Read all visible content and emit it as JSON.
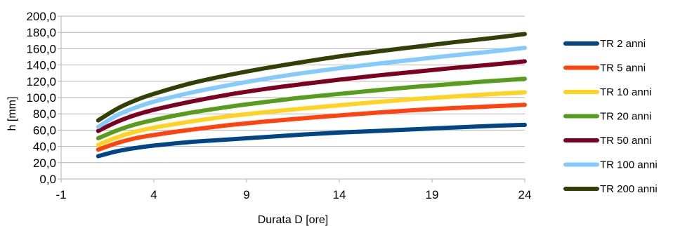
{
  "chart_data": {
    "type": "line",
    "title": "",
    "xlabel": "Durata D [ore]",
    "ylabel": "h [mm]",
    "xlim": [
      -1,
      24
    ],
    "ylim": [
      0,
      200
    ],
    "x_ticks": [
      "-1",
      "4",
      "9",
      "14",
      "19",
      "24"
    ],
    "y_ticks": [
      "0,0",
      "20,0",
      "40,0",
      "60,0",
      "80,0",
      "100,0",
      "120,0",
      "140,0",
      "160,0",
      "180,0",
      "200,0"
    ],
    "grid": "horizontal",
    "legend_position": "right",
    "x": [
      1,
      2,
      3,
      4,
      6,
      8,
      10,
      12,
      14,
      16,
      18,
      20,
      22,
      24
    ],
    "series": [
      {
        "name": "TR 2 anni",
        "color": "#004586",
        "values": [
          28,
          34,
          38,
          41,
          45.5,
          48.5,
          51.5,
          54.5,
          57,
          59,
          61,
          63,
          65,
          66.5
        ]
      },
      {
        "name": "TR 5 anni",
        "color": "#ff420e",
        "values": [
          36,
          44,
          50,
          54,
          60.5,
          66,
          70.5,
          74.5,
          78,
          81.5,
          84.5,
          87,
          89,
          91
        ]
      },
      {
        "name": "TR 10 anni",
        "color": "#ffd320",
        "values": [
          42,
          51,
          58,
          63,
          70.5,
          77,
          82,
          86.5,
          90.5,
          94.5,
          98,
          101,
          104,
          106.5
        ]
      },
      {
        "name": "TR 20 anni",
        "color": "#579d1c",
        "values": [
          50,
          59.5,
          67,
          72.5,
          81.5,
          88.5,
          94.5,
          100,
          104.5,
          109,
          113,
          116.5,
          120,
          123
        ]
      },
      {
        "name": "TR 50 anni",
        "color": "#7e0021",
        "values": [
          59,
          70,
          78.5,
          85,
          95,
          103.5,
          110.5,
          116.5,
          122,
          127,
          131.5,
          136,
          140,
          144.5
        ]
      },
      {
        "name": "TR 100 anni",
        "color": "#83caff",
        "values": [
          64,
          78,
          87.5,
          95,
          106,
          115,
          123,
          130,
          136,
          141.5,
          146.5,
          151.5,
          156,
          161
        ]
      },
      {
        "name": "TR 200 anni",
        "color": "#314004",
        "values": [
          72,
          86,
          96.5,
          104.5,
          117.5,
          127.5,
          136,
          143.5,
          150.5,
          156.5,
          162,
          167.5,
          172.5,
          178
        ]
      }
    ]
  }
}
